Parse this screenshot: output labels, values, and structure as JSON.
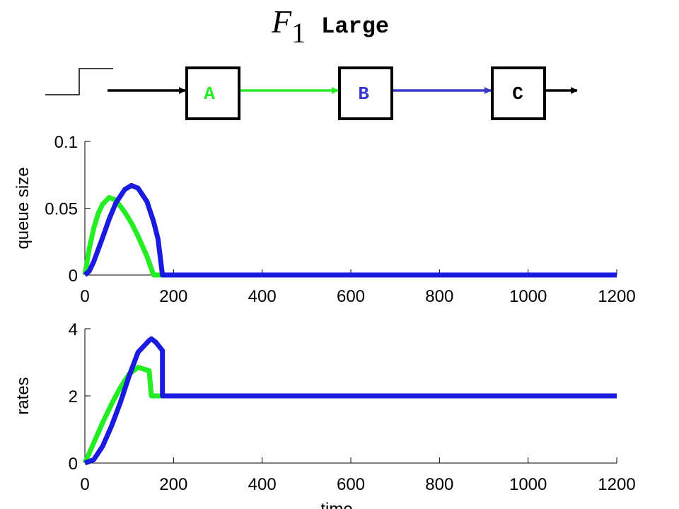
{
  "title": {
    "symbol": "F",
    "subscript": "1",
    "text": "Large"
  },
  "diagram": {
    "nodes": [
      "A",
      "B",
      "C"
    ]
  },
  "chart_data": [
    {
      "type": "line",
      "ylabel": "queue size",
      "x": [
        0,
        10,
        20,
        30,
        40,
        55,
        70,
        90,
        105,
        120,
        140,
        155,
        165,
        175,
        1200
      ],
      "series": [
        {
          "color": "#22ee22",
          "values": [
            0,
            0.02,
            0.035,
            0.046,
            0.053,
            0.058,
            0.056,
            0.047,
            0.039,
            0.029,
            0.014,
            0,
            0,
            0,
            0
          ]
        },
        {
          "color": "#1a1ae0",
          "values": [
            0,
            0.003,
            0.01,
            0.019,
            0.028,
            0.042,
            0.054,
            0.064,
            0.067,
            0.065,
            0.055,
            0.04,
            0.027,
            0,
            0
          ]
        }
      ],
      "xlim": [
        0,
        1200
      ],
      "xticks": [
        0,
        200,
        400,
        600,
        800,
        1000,
        1200
      ],
      "ylim": [
        0,
        0.1
      ],
      "yticks": [
        0,
        0.05,
        0.1
      ]
    },
    {
      "type": "line",
      "ylabel": "rates",
      "xlabel": "time",
      "x": [
        0,
        20,
        40,
        60,
        80,
        100,
        120,
        145,
        150,
        160,
        175,
        175,
        1200
      ],
      "series": [
        {
          "color": "#22ee22",
          "values": [
            0,
            0.6,
            1.2,
            1.75,
            2.25,
            2.65,
            2.85,
            2.75,
            2,
            2,
            2,
            2,
            2
          ]
        },
        {
          "color": "#1a1ae0",
          "values": [
            0,
            0.1,
            0.5,
            1.1,
            1.8,
            2.6,
            3.3,
            3.65,
            3.7,
            3.6,
            3.35,
            2,
            2
          ]
        }
      ],
      "xlim": [
        0,
        1200
      ],
      "xticks": [
        0,
        200,
        400,
        600,
        800,
        1000,
        1200
      ],
      "ylim": [
        0,
        4
      ],
      "yticks": [
        0,
        2,
        4
      ]
    }
  ]
}
